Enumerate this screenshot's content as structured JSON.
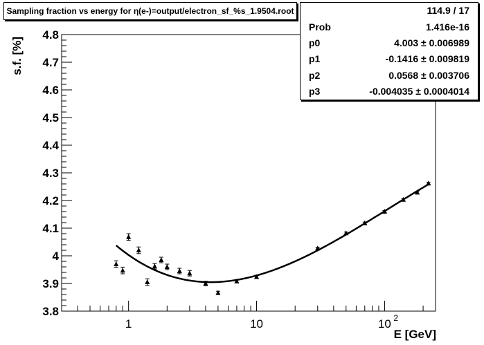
{
  "header": {
    "title": "Sampling fraction vs energy for η(e-)=output/electron_sf_%s_1.9504.root"
  },
  "stats": {
    "rows": [
      {
        "label": "",
        "value": "114.9 / 17"
      },
      {
        "label": "Prob",
        "value": "1.416e-16"
      },
      {
        "label": "p0",
        "value": "4.003 ± 0.006989"
      },
      {
        "label": "p1",
        "value": "-0.1416 ± 0.009819"
      },
      {
        "label": "p2",
        "value": "0.0568 ± 0.003706"
      },
      {
        "label": "p3",
        "value": "-0.004035 ± 0.0004014"
      }
    ]
  },
  "chart_data": {
    "type": "scatter",
    "title": "Sampling fraction vs energy for η(e-)=output/electron_sf_%s_1.9504.root",
    "xlabel": "E [GeV]",
    "ylabel": "s.f. [%]",
    "xscale": "log",
    "xlim": [
      0.3,
      250
    ],
    "ylim": [
      3.8,
      4.8
    ],
    "y_ticks": [
      "3.8",
      "3.9",
      "4",
      "4.1",
      "4.2",
      "4.3",
      "4.4",
      "4.5",
      "4.6",
      "4.7",
      "4.8"
    ],
    "x_ticks": [
      {
        "value": 1,
        "base": "1",
        "exp": ""
      },
      {
        "value": 10,
        "base": "10",
        "exp": ""
      },
      {
        "value": 100,
        "base": "10",
        "exp": "2"
      }
    ],
    "points": [
      {
        "x": 0.8,
        "y": 3.97,
        "err": 0.012
      },
      {
        "x": 0.9,
        "y": 3.947,
        "err": 0.012
      },
      {
        "x": 1.0,
        "y": 4.068,
        "err": 0.012
      },
      {
        "x": 1.2,
        "y": 4.02,
        "err": 0.012
      },
      {
        "x": 1.4,
        "y": 3.905,
        "err": 0.012
      },
      {
        "x": 1.6,
        "y": 3.962,
        "err": 0.01
      },
      {
        "x": 1.8,
        "y": 3.985,
        "err": 0.01
      },
      {
        "x": 2.0,
        "y": 3.96,
        "err": 0.01
      },
      {
        "x": 2.5,
        "y": 3.945,
        "err": 0.01
      },
      {
        "x": 3.0,
        "y": 3.937,
        "err": 0.01
      },
      {
        "x": 4.0,
        "y": 3.9,
        "err": 0.008
      },
      {
        "x": 5.0,
        "y": 3.866,
        "err": 0.006
      },
      {
        "x": 7.0,
        "y": 3.908,
        "err": 0.006
      },
      {
        "x": 10.0,
        "y": 3.924,
        "err": 0.006
      },
      {
        "x": 30.0,
        "y": 4.027,
        "err": 0.004
      },
      {
        "x": 50.0,
        "y": 4.082,
        "err": 0.004
      },
      {
        "x": 70.0,
        "y": 4.118,
        "err": 0.004
      },
      {
        "x": 100.0,
        "y": 4.16,
        "err": 0.004
      },
      {
        "x": 140.0,
        "y": 4.203,
        "err": 0.004
      },
      {
        "x": 180.0,
        "y": 4.229,
        "err": 0.004
      },
      {
        "x": 220.0,
        "y": 4.262,
        "err": 0.004
      }
    ],
    "fit": {
      "p0": 4.003,
      "p1": -0.1416,
      "p2": 0.0568,
      "p3": -0.004035,
      "x_range": [
        0.8,
        220
      ]
    },
    "grid": false,
    "colors": {
      "marker": "#000000",
      "line": "#000000",
      "background": "#ffffff"
    }
  }
}
